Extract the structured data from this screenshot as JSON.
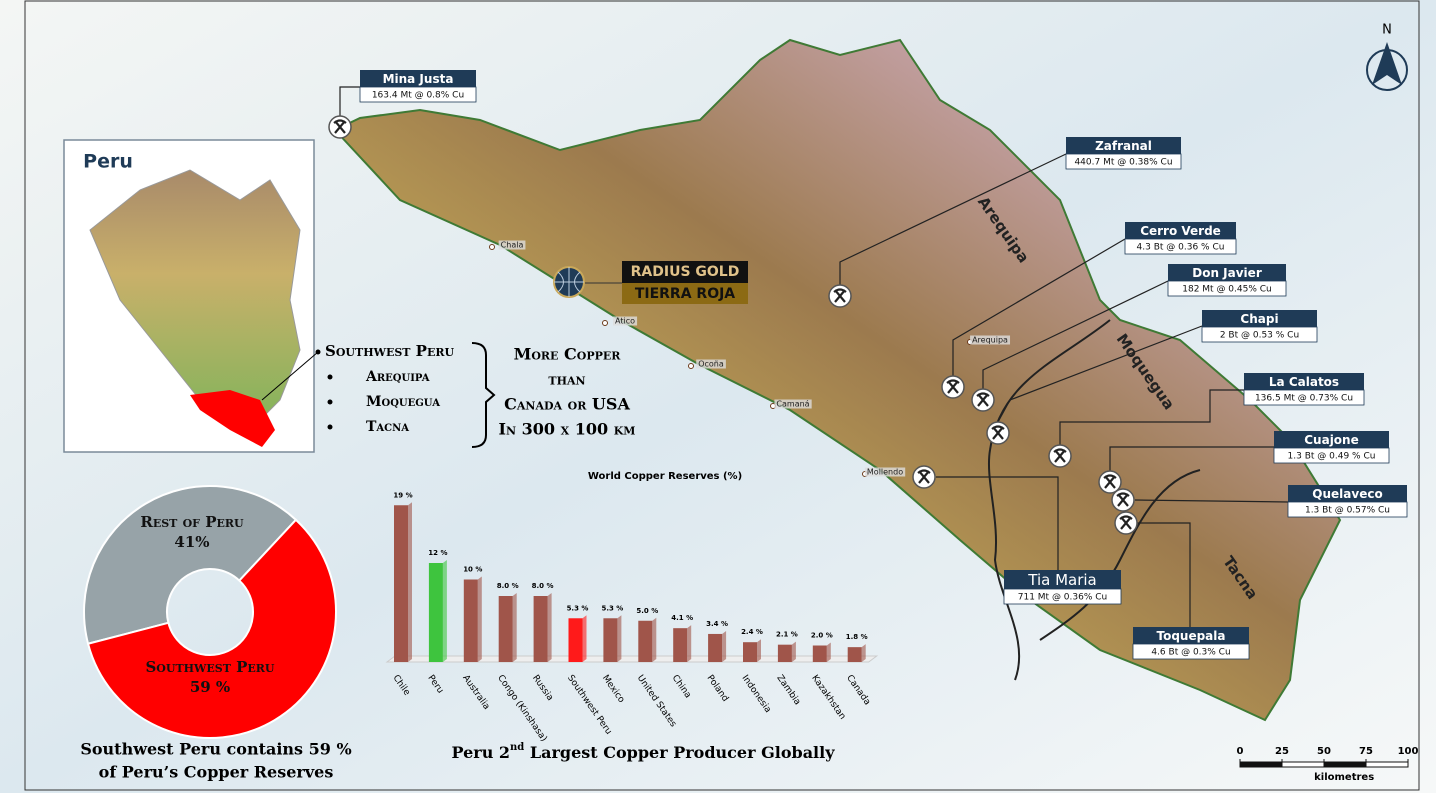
{
  "map": {
    "inset": {
      "title": "Peru"
    },
    "north": "N",
    "scale_bar": {
      "ticks": [
        0,
        25,
        50,
        75,
        100
      ],
      "unit": "kilometres"
    },
    "project": {
      "company": "RADIUS GOLD",
      "name": "TIERRA ROJA"
    },
    "regions": [
      "Arequipa",
      "Moquegua",
      "Tacna"
    ],
    "towns": [
      "Chala",
      "Atico",
      "Ocoña",
      "Camaná",
      "Mollendo",
      "Arequipa"
    ],
    "mines": [
      {
        "name": "Mina Justa",
        "resource": "163.4 Mt @ 0.8% Cu"
      },
      {
        "name": "Zafranal",
        "resource": "440.7 Mt @ 0.38% Cu"
      },
      {
        "name": "Cerro Verde",
        "resource": "4.3 Bt @ 0.36 % Cu"
      },
      {
        "name": "Don Javier",
        "resource": "182 Mt @ 0.45% Cu"
      },
      {
        "name": "Chapi",
        "resource": "2 Bt @ 0.53 % Cu"
      },
      {
        "name": "La Calatos",
        "resource": "136.5 Mt @ 0.73% Cu"
      },
      {
        "name": "Cuajone",
        "resource": "1.3 Bt @ 0.49 % Cu"
      },
      {
        "name": "Quelaveco",
        "resource": "1.3 Bt @ 0.57% Cu"
      },
      {
        "name": "Tia Maria",
        "resource": "711 Mt @ 0.36% Cu"
      },
      {
        "name": "Toquepala",
        "resource": "4.6 Bt @ 0.3% Cu"
      }
    ]
  },
  "callout": {
    "bullets": [
      "Southwest Peru",
      "Arequipa",
      "Moquegua",
      "Tacna"
    ],
    "statement": [
      "More Copper",
      "than",
      "Canada or USA",
      "In 300 x 100 km"
    ]
  },
  "chart_data": [
    {
      "type": "donut",
      "categories": [
        "Rest of Peru",
        "Southwest Peru"
      ],
      "values": [
        41,
        59
      ],
      "value_labels": [
        "41%",
        "59 %"
      ],
      "colors": [
        "#97a3a8",
        "#ff0000"
      ],
      "caption": [
        "Southwest Peru contains 59 %",
        "of Peru’s Copper Reserves"
      ]
    },
    {
      "type": "bar",
      "title": "World Copper Reserves (%)",
      "categories": [
        "Chile",
        "Peru",
        "Australia",
        "Congo (Kinshasa)",
        "Russia",
        "Southwest Peru",
        "Mexico",
        "United States",
        "China",
        "Poland",
        "Indonesia",
        "Zambia",
        "Kazakhstan",
        "Canada"
      ],
      "values": [
        19,
        12,
        10,
        8,
        8,
        5.3,
        5.3,
        5,
        4.1,
        3.4,
        2.4,
        2.1,
        2,
        1.8
      ],
      "value_labels": [
        "19 %",
        "12 %",
        "10 %",
        "8.0 %",
        "8.0 %",
        "5.3 %",
        "5.3 %",
        "5.0 %",
        "4.1 %",
        "3.4 %",
        "2.4 %",
        "2.1 %",
        "2.0 %",
        "1.8 %"
      ],
      "colors": [
        "#a0554a",
        "#3ec43e",
        "#a0554a",
        "#a0554a",
        "#a0554a",
        "#ff1a1a",
        "#a0554a",
        "#a0554a",
        "#a0554a",
        "#a0554a",
        "#a0554a",
        "#a0554a",
        "#a0554a",
        "#a0554a"
      ],
      "ylim": [
        0,
        20
      ],
      "caption": {
        "before": "Peru 2",
        "sup": "nd",
        "after": " Largest Copper Producer Globally"
      }
    }
  ]
}
